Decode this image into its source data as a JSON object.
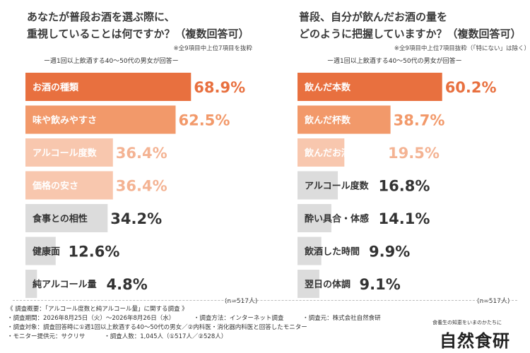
{
  "chart_data": [
    {
      "type": "bar",
      "orientation": "horizontal",
      "title_lines": [
        "あなたが普段お酒を選ぶ際に、",
        "重視していることは何ですか？（複数回答可）"
      ],
      "note": "※全9項目中上位7項目を抜粋",
      "subtitle": "ー週1回以上飲酒する40～50代の男女が回答ー",
      "sample_size": "(n=517人)",
      "categories": [
        "お酒の種類",
        "味や飲みやすさ",
        "アルコール度数",
        "価格の安さ",
        "食事との相性",
        "健康面",
        "純アルコール量"
      ],
      "values": [
        68.9,
        62.5,
        36.4,
        36.4,
        34.2,
        12.6,
        4.8
      ],
      "value_labels": [
        "68.9%",
        "62.5%",
        "36.4%",
        "36.4%",
        "34.2%",
        "12.6%",
        "4.8%"
      ],
      "colors": [
        "#e8703f",
        "#f2996a",
        "#f8c7ae",
        "#f8c7ae",
        "#dcdcdc",
        "#dcdcdc",
        "#dcdcdc"
      ],
      "label_colors": [
        "#e8703f",
        "#f2996a",
        "#f4b393",
        "#f4b393",
        "#333333",
        "#333333",
        "#333333"
      ],
      "xlim": [
        0,
        100
      ]
    },
    {
      "type": "bar",
      "orientation": "horizontal",
      "title_lines": [
        "普段、自分が飲んだお酒の量を",
        "どのように把握していますか？（複数回答可）"
      ],
      "note": "※全9項目中上位7項目抜粋（「特にない」は除く）",
      "subtitle": "ー週1回以上飲酒する40～50代の男女が回答ー",
      "sample_size": "(n=517人)",
      "categories": [
        "飲んだ本数",
        "飲んだ杯数",
        "飲んだお酒の容量",
        "アルコール度数",
        "酔い具合・体感",
        "飲酒した時間",
        "翌日の体調"
      ],
      "values": [
        60.2,
        38.7,
        19.5,
        16.8,
        14.1,
        9.9,
        9.1
      ],
      "value_labels": [
        "60.2%",
        "38.7%",
        "19.5%",
        "16.8%",
        "14.1%",
        "9.9%",
        "9.1%"
      ],
      "colors": [
        "#e8703f",
        "#f2996a",
        "#f8c7ae",
        "#dcdcdc",
        "#dcdcdc",
        "#dcdcdc",
        "#dcdcdc"
      ],
      "label_colors": [
        "#e8703f",
        "#f2996a",
        "#f4b393",
        "#333333",
        "#333333",
        "#333333",
        "#333333"
      ],
      "xlim": [
        0,
        100
      ]
    }
  ],
  "footer": {
    "lines": [
      [
        "《 調査概要：「アルコール度数と純アルコール量」に関する調査 》"
      ],
      [
        "・調査期間：2026年8月25日（火）～2026年8月26日（水）",
        "・調査方法：インターネット調査",
        "・調査元：株式会社自然食研"
      ],
      [
        "・調査対象：調査回答時に①週1回以上飲酒する40～50代の男女／②内科医・消化器内科医と回答したモニター"
      ],
      [
        "・モニター提供元：サクリサ",
        "・調査人数：1,045人（①517人／②528人）"
      ]
    ]
  },
  "brand": {
    "tagline": "食養生の知恵をいまのかたちに",
    "name": "自然食研"
  }
}
